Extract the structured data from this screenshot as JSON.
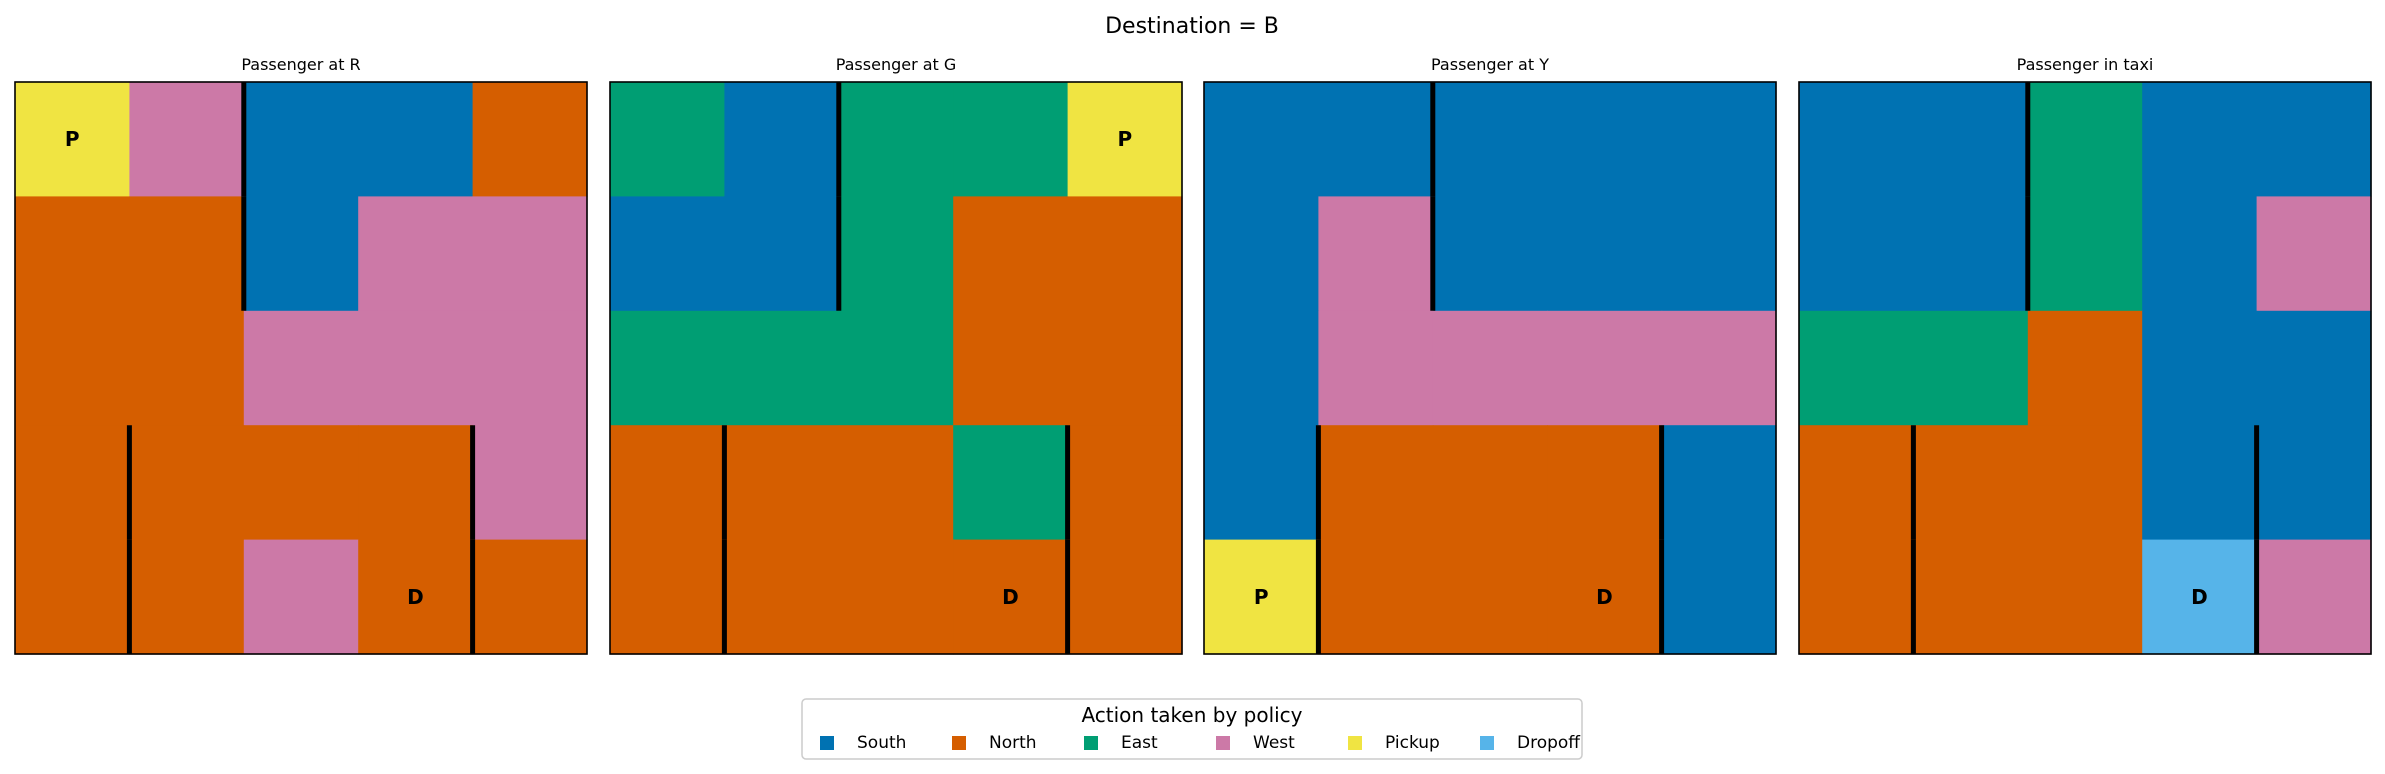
{
  "title": "Destination = B",
  "colors": {
    "South": "#0072B2",
    "North": "#D55E00",
    "East": "#009E73",
    "West": "#CC79A7",
    "Pickup": "#F0E442",
    "Dropoff": "#56B4E9"
  },
  "legend": {
    "title": "Action taken by policy",
    "placement": "bottom-center",
    "entries": [
      "South",
      "North",
      "East",
      "West",
      "Pickup",
      "Dropoff"
    ]
  },
  "chart_data": [
    {
      "type": "heatmap",
      "title": "Passenger at R",
      "grid": [
        [
          "Pickup",
          "West",
          "South",
          "South",
          "North"
        ],
        [
          "North",
          "North",
          "South",
          "West",
          "West"
        ],
        [
          "North",
          "North",
          "West",
          "West",
          "West"
        ],
        [
          "North",
          "North",
          "North",
          "North",
          "West"
        ],
        [
          "North",
          "North",
          "West",
          "North",
          "North"
        ]
      ],
      "markers": [
        {
          "row": 0,
          "col": 0,
          "label": "P"
        },
        {
          "row": 4,
          "col": 3,
          "label": "D"
        }
      ]
    },
    {
      "type": "heatmap",
      "title": "Passenger at G",
      "grid": [
        [
          "East",
          "South",
          "East",
          "East",
          "Pickup"
        ],
        [
          "South",
          "South",
          "East",
          "North",
          "North"
        ],
        [
          "East",
          "East",
          "East",
          "North",
          "North"
        ],
        [
          "North",
          "North",
          "North",
          "East",
          "North"
        ],
        [
          "North",
          "North",
          "North",
          "North",
          "North"
        ]
      ],
      "markers": [
        {
          "row": 0,
          "col": 4,
          "label": "P"
        },
        {
          "row": 4,
          "col": 3,
          "label": "D"
        }
      ]
    },
    {
      "type": "heatmap",
      "title": "Passenger at Y",
      "grid": [
        [
          "South",
          "South",
          "South",
          "South",
          "South"
        ],
        [
          "South",
          "West",
          "South",
          "South",
          "South"
        ],
        [
          "South",
          "West",
          "West",
          "West",
          "West"
        ],
        [
          "South",
          "North",
          "North",
          "North",
          "South"
        ],
        [
          "Pickup",
          "North",
          "North",
          "North",
          "South"
        ]
      ],
      "markers": [
        {
          "row": 4,
          "col": 0,
          "label": "P"
        },
        {
          "row": 4,
          "col": 3,
          "label": "D"
        }
      ]
    },
    {
      "type": "heatmap",
      "title": "Passenger in taxi",
      "grid": [
        [
          "South",
          "South",
          "East",
          "South",
          "South"
        ],
        [
          "South",
          "South",
          "East",
          "South",
          "West"
        ],
        [
          "East",
          "East",
          "North",
          "South",
          "South"
        ],
        [
          "North",
          "North",
          "North",
          "South",
          "South"
        ],
        [
          "North",
          "North",
          "North",
          "Dropoff",
          "West"
        ]
      ],
      "markers": [
        {
          "row": 4,
          "col": 3,
          "label": "D"
        }
      ]
    }
  ]
}
